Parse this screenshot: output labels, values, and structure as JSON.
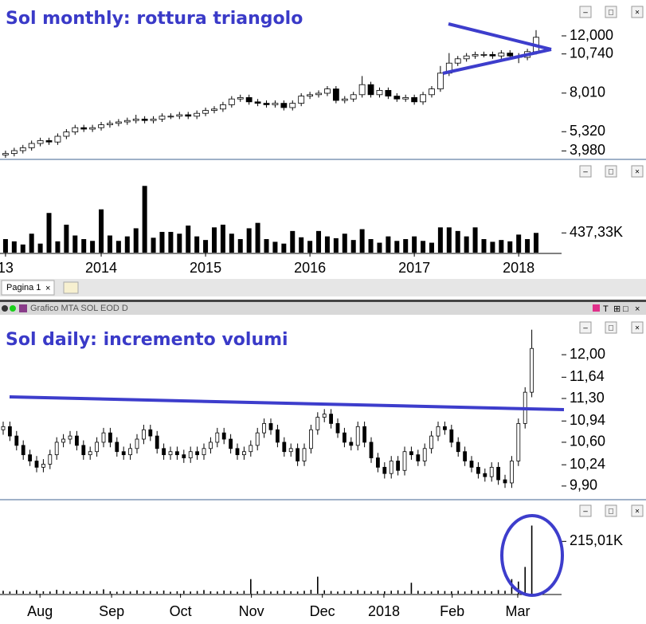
{
  "ui": {
    "tab": "Pagina 1",
    "window_title": "Grafico MTA SOL EOD D"
  },
  "chart_data": [
    {
      "type": "candlestick",
      "title": "Sol monthly: rottura triangolo",
      "open": [
        3.7,
        3.8,
        4.0,
        4.2,
        4.5,
        4.7,
        4.6,
        5.0,
        5.3,
        5.6,
        5.5,
        5.6,
        5.8,
        5.9,
        6.0,
        6.1,
        6.2,
        6.1,
        6.2,
        6.4,
        6.4,
        6.5,
        6.4,
        6.6,
        6.8,
        6.9,
        7.2,
        7.6,
        7.7,
        7.4,
        7.3,
        7.2,
        7.3,
        7.0,
        7.3,
        7.8,
        7.9,
        8.0,
        8.3,
        7.5,
        7.6,
        7.9,
        8.6,
        7.9,
        8.2,
        7.8,
        7.6,
        7.7,
        7.4,
        7.9,
        8.3,
        9.4,
        10.1,
        10.4,
        10.6,
        10.7,
        10.7,
        10.6,
        10.8,
        10.6,
        10.5,
        10.9
      ],
      "high": [
        4.0,
        4.2,
        4.4,
        4.7,
        4.9,
        4.9,
        5.2,
        5.5,
        5.8,
        5.8,
        5.8,
        6.0,
        6.1,
        6.2,
        6.3,
        6.5,
        6.4,
        6.4,
        6.6,
        6.6,
        6.7,
        6.7,
        6.8,
        7.0,
        7.1,
        7.4,
        7.8,
        7.9,
        7.9,
        7.6,
        7.5,
        7.5,
        7.5,
        7.5,
        8.0,
        8.1,
        8.2,
        8.5,
        8.5,
        7.8,
        8.1,
        9.2,
        8.8,
        8.4,
        8.4,
        8.0,
        7.9,
        7.9,
        8.1,
        8.5,
        9.9,
        10.8,
        10.6,
        10.8,
        10.9,
        10.9,
        10.9,
        11.0,
        11.0,
        10.8,
        11.1,
        12.4
      ],
      "low": [
        3.5,
        3.6,
        3.8,
        4.0,
        4.3,
        4.4,
        4.4,
        4.8,
        5.1,
        5.3,
        5.3,
        5.4,
        5.6,
        5.7,
        5.8,
        5.9,
        5.9,
        5.9,
        6.0,
        6.2,
        6.2,
        6.2,
        6.2,
        6.4,
        6.6,
        6.7,
        7.0,
        7.4,
        7.2,
        7.1,
        7.0,
        7.0,
        6.8,
        6.8,
        7.1,
        7.6,
        7.7,
        7.8,
        7.3,
        7.3,
        7.4,
        7.7,
        7.7,
        7.7,
        7.6,
        7.4,
        7.4,
        7.2,
        7.2,
        7.7,
        8.1,
        9.2,
        9.9,
        10.2,
        10.4,
        10.5,
        10.4,
        10.4,
        10.4,
        10.1,
        10.3,
        10.7
      ],
      "close": [
        3.8,
        4.0,
        4.2,
        4.5,
        4.7,
        4.6,
        5.0,
        5.3,
        5.6,
        5.5,
        5.6,
        5.8,
        5.9,
        6.0,
        6.1,
        6.2,
        6.1,
        6.2,
        6.4,
        6.4,
        6.5,
        6.4,
        6.6,
        6.8,
        6.9,
        7.2,
        7.6,
        7.7,
        7.4,
        7.3,
        7.2,
        7.3,
        7.0,
        7.3,
        7.8,
        7.9,
        8.0,
        8.3,
        7.5,
        7.6,
        7.9,
        8.6,
        7.9,
        8.2,
        7.8,
        7.6,
        7.7,
        7.4,
        7.9,
        8.3,
        9.4,
        10.1,
        10.4,
        10.6,
        10.7,
        10.7,
        10.6,
        10.8,
        10.6,
        10.5,
        10.9,
        11.9
      ],
      "volume": [
        300000,
        250000,
        180000,
        420000,
        200000,
        880000,
        250000,
        620000,
        380000,
        300000,
        260000,
        960000,
        380000,
        260000,
        360000,
        540000,
        1480000,
        330000,
        460000,
        460000,
        420000,
        600000,
        360000,
        280000,
        560000,
        620000,
        420000,
        300000,
        540000,
        660000,
        300000,
        240000,
        200000,
        480000,
        340000,
        260000,
        480000,
        360000,
        320000,
        420000,
        280000,
        520000,
        300000,
        220000,
        360000,
        260000,
        300000,
        360000,
        260000,
        220000,
        560000,
        560000,
        480000,
        360000,
        560000,
        300000,
        240000,
        280000,
        250000,
        400000,
        300000,
        437330
      ],
      "xlim": [
        -0.634,
        63.93
      ],
      "xticks": [
        {
          "value": 0,
          "label": "13"
        },
        {
          "value": 11,
          "label": "2014"
        },
        {
          "value": 23,
          "label": "2015"
        },
        {
          "value": 35,
          "label": "2016"
        },
        {
          "value": 47,
          "label": "2017"
        },
        {
          "value": 59,
          "label": "2018"
        }
      ],
      "ylim": [
        3.5,
        14.5
      ],
      "yticks": [
        {
          "value": 12,
          "label": "12,000"
        },
        {
          "value": 10.74,
          "label": "10,740"
        },
        {
          "value": 8.01,
          "label": "8,010"
        },
        {
          "value": 5.32,
          "label": "5,320"
        },
        {
          "value": 3.98,
          "label": "3,980"
        }
      ],
      "volume_ylim": [
        0,
        1980000
      ],
      "volume_ticks": [
        {
          "value": 437330,
          "label": "437,33K"
        }
      ]
    },
    {
      "type": "candlestick",
      "title": "Sol daily: incremento volumi",
      "open": [
        10.8,
        10.85,
        10.7,
        10.55,
        10.4,
        10.3,
        10.2,
        10.25,
        10.4,
        10.6,
        10.65,
        10.7,
        10.55,
        10.4,
        10.45,
        10.6,
        10.75,
        10.6,
        10.45,
        10.4,
        10.5,
        10.65,
        10.8,
        10.7,
        10.5,
        10.4,
        10.45,
        10.4,
        10.35,
        10.45,
        10.4,
        10.5,
        10.6,
        10.75,
        10.65,
        10.5,
        10.4,
        10.45,
        10.55,
        10.75,
        10.9,
        10.8,
        10.6,
        10.45,
        10.5,
        10.3,
        10.5,
        10.8,
        11.0,
        11.05,
        10.9,
        10.75,
        10.6,
        10.55,
        10.85,
        10.6,
        10.35,
        10.2,
        10.1,
        10.3,
        10.15,
        10.45,
        10.4,
        10.3,
        10.5,
        10.7,
        10.85,
        10.8,
        10.6,
        10.45,
        10.3,
        10.2,
        10.1,
        10.05,
        10.2,
        10.0,
        9.95,
        10.3,
        10.9,
        11.4
      ],
      "high": [
        10.93,
        10.93,
        10.78,
        10.63,
        10.48,
        10.38,
        10.33,
        10.48,
        10.68,
        10.73,
        10.78,
        10.78,
        10.63,
        10.53,
        10.68,
        10.83,
        10.83,
        10.68,
        10.53,
        10.58,
        10.73,
        10.88,
        10.88,
        10.78,
        10.58,
        10.53,
        10.53,
        10.48,
        10.53,
        10.53,
        10.58,
        10.68,
        10.83,
        10.83,
        10.73,
        10.58,
        10.53,
        10.63,
        10.83,
        10.98,
        10.98,
        10.88,
        10.68,
        10.58,
        10.58,
        10.58,
        10.88,
        11.08,
        11.13,
        11.13,
        10.98,
        10.83,
        10.68,
        10.93,
        10.93,
        10.68,
        10.43,
        10.28,
        10.38,
        10.38,
        10.53,
        10.53,
        10.48,
        10.58,
        10.78,
        10.93,
        10.93,
        10.88,
        10.68,
        10.53,
        10.38,
        10.28,
        10.18,
        10.28,
        10.28,
        10.08,
        10.38,
        10.98,
        11.48,
        12.4
      ],
      "low": [
        10.72,
        10.62,
        10.47,
        10.32,
        10.22,
        10.12,
        10.12,
        10.17,
        10.32,
        10.52,
        10.57,
        10.47,
        10.32,
        10.32,
        10.37,
        10.52,
        10.52,
        10.37,
        10.32,
        10.32,
        10.42,
        10.57,
        10.62,
        10.42,
        10.32,
        10.32,
        10.32,
        10.27,
        10.27,
        10.32,
        10.32,
        10.42,
        10.52,
        10.57,
        10.42,
        10.32,
        10.32,
        10.37,
        10.47,
        10.67,
        10.72,
        10.52,
        10.37,
        10.37,
        10.22,
        10.22,
        10.42,
        10.72,
        10.92,
        10.82,
        10.67,
        10.52,
        10.47,
        10.47,
        10.52,
        10.27,
        10.12,
        10.02,
        10.02,
        10.07,
        10.07,
        10.32,
        10.22,
        10.22,
        10.42,
        10.62,
        10.72,
        10.52,
        10.37,
        10.22,
        10.12,
        10.02,
        9.97,
        9.97,
        9.92,
        9.87,
        9.87,
        10.22,
        10.82,
        11.32
      ],
      "close": [
        10.85,
        10.7,
        10.55,
        10.4,
        10.3,
        10.2,
        10.25,
        10.4,
        10.6,
        10.65,
        10.7,
        10.55,
        10.4,
        10.45,
        10.6,
        10.75,
        10.6,
        10.45,
        10.4,
        10.5,
        10.65,
        10.8,
        10.7,
        10.5,
        10.4,
        10.45,
        10.4,
        10.35,
        10.45,
        10.4,
        10.5,
        10.6,
        10.75,
        10.65,
        10.5,
        10.4,
        10.45,
        10.55,
        10.75,
        10.9,
        10.8,
        10.6,
        10.45,
        10.5,
        10.3,
        10.5,
        10.8,
        11.0,
        11.05,
        10.9,
        10.75,
        10.6,
        10.55,
        10.85,
        10.6,
        10.35,
        10.2,
        10.1,
        10.3,
        10.15,
        10.45,
        10.4,
        10.3,
        10.5,
        10.7,
        10.85,
        10.8,
        10.6,
        10.45,
        10.3,
        10.2,
        10.1,
        10.05,
        10.2,
        10.0,
        9.95,
        10.3,
        10.9,
        11.4,
        12.1
      ],
      "volume": [
        12000,
        9000,
        15000,
        11000,
        8000,
        14000,
        10000,
        9000,
        16000,
        12000,
        8000,
        10000,
        13000,
        9000,
        11000,
        18000,
        10000,
        8000,
        12000,
        9000,
        14000,
        10000,
        11000,
        9000,
        13000,
        8000,
        10000,
        12000,
        9000,
        11000,
        15000,
        10000,
        9000,
        13000,
        11000,
        8000,
        12000,
        60000,
        10000,
        14000,
        9000,
        11000,
        13000,
        10000,
        9000,
        12000,
        16000,
        70000,
        14000,
        11000,
        9000,
        12000,
        10000,
        15000,
        11000,
        9000,
        13000,
        10000,
        12000,
        14000,
        11000,
        45000,
        12000,
        10000,
        9000,
        13000,
        11000,
        10000,
        12000,
        9000,
        14000,
        11000,
        13000,
        10000,
        15000,
        12000,
        60000,
        50000,
        110000,
        280000
      ],
      "xlim": [
        -0.476,
        83.45
      ],
      "xticks": [
        {
          "value": 5.5,
          "label": "Aug"
        },
        {
          "value": 16.2,
          "label": "Sep"
        },
        {
          "value": 26.5,
          "label": "Oct"
        },
        {
          "value": 37.1,
          "label": "Nov"
        },
        {
          "value": 47.7,
          "label": "Dec"
        },
        {
          "value": 56.9,
          "label": "2018"
        },
        {
          "value": 67.1,
          "label": "Feb"
        },
        {
          "value": 76.9,
          "label": "Mar"
        }
      ],
      "ylim": [
        9.72,
        12.6
      ],
      "yticks": [
        {
          "value": 12,
          "label": "12,00"
        },
        {
          "value": 11.64,
          "label": "11,64"
        },
        {
          "value": 11.3,
          "label": "11,30"
        },
        {
          "value": 10.94,
          "label": "10,94"
        },
        {
          "value": 10.6,
          "label": "10,60"
        },
        {
          "value": 10.24,
          "label": "10,24"
        },
        {
          "value": 9.9,
          "label": "9,90"
        }
      ],
      "volume_ylim": [
        0,
        370000
      ],
      "volume_ticks": [
        {
          "value": 215010,
          "label": "215,01K"
        }
      ]
    }
  ]
}
